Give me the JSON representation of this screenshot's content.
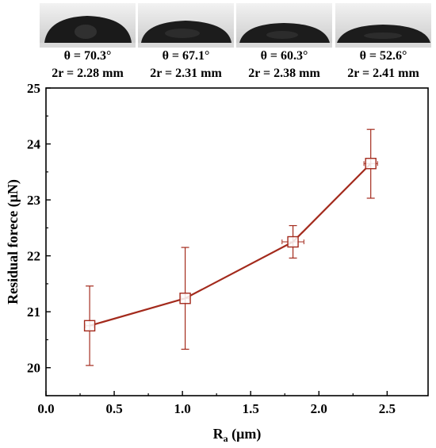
{
  "droplets": [
    {
      "angle": "θ = 70.3°",
      "diameter": "2r = 2.28 mm"
    },
    {
      "angle": "θ = 67.1°",
      "diameter": "2r = 2.31 mm"
    },
    {
      "angle": "θ = 60.3°",
      "diameter": "2r = 2.38 mm"
    },
    {
      "angle": "θ = 52.6°",
      "diameter": "2r = 2.41 mm"
    }
  ],
  "chart_data": {
    "type": "line",
    "xlabel_main": "R",
    "xlabel_sub": "a",
    "xlabel_unit": " (μm)",
    "ylabel": "Residual forece (μN)",
    "xlim": [
      0.0,
      2.8
    ],
    "ylim": [
      19.5,
      25
    ],
    "xticks": [
      "0.0",
      "0.5",
      "1.0",
      "1.5",
      "2.0",
      "2.5"
    ],
    "xtick_values": [
      0.0,
      0.5,
      1.0,
      1.5,
      2.0,
      2.5
    ],
    "yticks": [
      "20",
      "21",
      "22",
      "23",
      "24",
      "25"
    ],
    "ytick_values": [
      20,
      21,
      22,
      23,
      24,
      25
    ],
    "color": "#a32a1c",
    "marker": "open-square",
    "series": [
      {
        "x": [
          0.32,
          1.02,
          1.81,
          2.38
        ],
        "y": [
          20.75,
          21.24,
          22.25,
          23.65
        ],
        "y_err_low": [
          20.04,
          20.33,
          21.96,
          23.03
        ],
        "y_err_high": [
          21.46,
          22.15,
          22.54,
          24.26
        ],
        "x_err": [
          0.03,
          0.03,
          0.08,
          0.05
        ]
      }
    ]
  }
}
